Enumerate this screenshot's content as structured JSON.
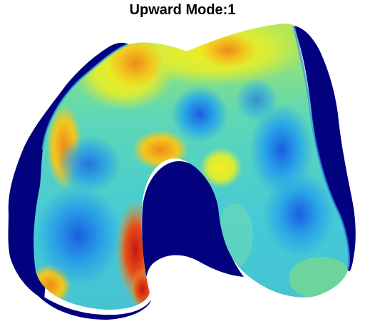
{
  "figure": {
    "title": "Upward Mode:1"
  },
  "colormap": {
    "name": "jet",
    "low": "#00007f",
    "blue": "#1f6fe0",
    "cyan": "#36d6e0",
    "yellow": "#f2f21e",
    "red": "#e0401a",
    "darkred": "#a01010"
  },
  "surface": {
    "name": "femoral-condyle-surface"
  }
}
